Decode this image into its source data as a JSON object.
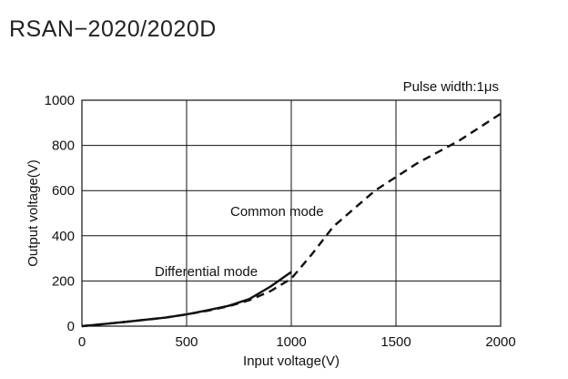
{
  "page_title": "RSAN−2020/2020D",
  "chart_data": {
    "type": "line",
    "title": "RSAN−2020/2020D",
    "xlabel": "Input voltage(V)",
    "ylabel": "Output voltage(V)",
    "xlim": [
      0,
      2000
    ],
    "ylim": [
      0,
      1000
    ],
    "x_ticks": [
      0,
      500,
      1000,
      1500,
      2000
    ],
    "y_ticks": [
      0,
      200,
      400,
      600,
      800,
      1000
    ],
    "grid": true,
    "annotations": {
      "condition": "Pulse width:1μs",
      "differential_label": "Differential mode",
      "common_label": "Common mode"
    },
    "series": [
      {
        "name": "Differential mode",
        "style": "solid",
        "x": [
          0,
          200,
          400,
          500,
          600,
          700,
          800,
          900,
          1000
        ],
        "y": [
          0,
          18,
          38,
          52,
          70,
          90,
          120,
          175,
          240
        ]
      },
      {
        "name": "Common mode",
        "style": "dashed",
        "x": [
          0,
          200,
          400,
          500,
          600,
          700,
          800,
          900,
          1000,
          1100,
          1200,
          1300,
          1400,
          1500,
          1600,
          1700,
          1800,
          1900,
          2000
        ],
        "y": [
          0,
          18,
          38,
          52,
          68,
          88,
          115,
          155,
          210,
          320,
          440,
          520,
          600,
          660,
          720,
          770,
          820,
          880,
          940
        ]
      }
    ]
  }
}
